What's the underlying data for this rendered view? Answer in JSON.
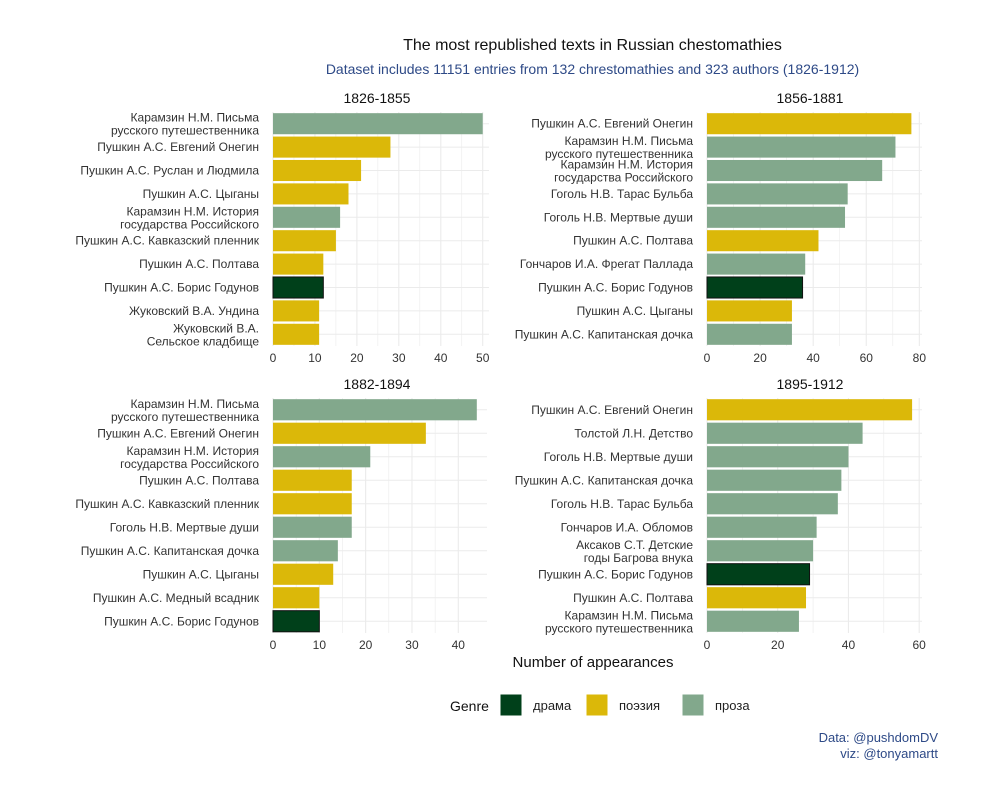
{
  "title": "The most republished texts in Russian chestomathies",
  "subtitle": "Dataset includes 11151 entries from 132 chrestomathies and 323 authors (1826-1912)",
  "caption": {
    "line1": "Data: @pushdomDV",
    "line2": "viz: @tonyamartt"
  },
  "colors": {
    "драма": "#00401A",
    "поэзия": "#DBB809",
    "проза": "#82A88C",
    "accent_text": "#2E4A87",
    "grid": "#EBEBEB"
  },
  "chart_data": {
    "type": "bar",
    "orientation": "horizontal",
    "xlabel": "Number of appearances",
    "legend": {
      "title": "Genre",
      "placement": "bottom",
      "entries": [
        "драма",
        "поэзия",
        "проза"
      ]
    },
    "grid": true,
    "panels": [
      {
        "title": "1826-1855",
        "xlim": [
          0,
          51.5
        ],
        "xticks": [
          0,
          10,
          20,
          30,
          40,
          50
        ],
        "bars": [
          {
            "label": "Карамзин Н.М. Письма русского путешественника",
            "value": 50,
            "genre": "проза"
          },
          {
            "label": "Пушкин А.С. Евгений Онегин",
            "value": 28,
            "genre": "поэзия"
          },
          {
            "label": "Пушкин А.С. Руслан и Людмила",
            "value": 21,
            "genre": "поэзия"
          },
          {
            "label": "Пушкин А.С. Цыганы",
            "value": 18,
            "genre": "поэзия"
          },
          {
            "label": "Карамзин Н.М. История государства Российского",
            "value": 16,
            "genre": "проза"
          },
          {
            "label": "Пушкин А.С. Кавказский пленник",
            "value": 15,
            "genre": "поэзия"
          },
          {
            "label": "Пушкин А.С. Полтава",
            "value": 12,
            "genre": "поэзия"
          },
          {
            "label": "Пушкин А.С. Борис Годунов",
            "value": 12,
            "genre": "драма"
          },
          {
            "label": "Жуковский В.А. Ундина",
            "value": 11,
            "genre": "поэзия"
          },
          {
            "label": "Жуковский В.А. Сельское кладбище",
            "value": 11,
            "genre": "поэзия"
          }
        ]
      },
      {
        "title": "1856-1881",
        "xlim": [
          0,
          81
        ],
        "xticks": [
          0,
          20,
          40,
          60,
          80
        ],
        "bars": [
          {
            "label": "Пушкин А.С. Евгений Онегин",
            "value": 77,
            "genre": "поэзия"
          },
          {
            "label": "Карамзин Н.М. Письма русского путешественника",
            "value": 71,
            "genre": "проза"
          },
          {
            "label": "Карамзин Н.М. История государства Российского",
            "value": 66,
            "genre": "проза"
          },
          {
            "label": "Гоголь Н.В. Тарас Бульба",
            "value": 53,
            "genre": "проза"
          },
          {
            "label": "Гоголь Н.В. Мертвые души",
            "value": 52,
            "genre": "проза"
          },
          {
            "label": "Пушкин А.С. Полтава",
            "value": 42,
            "genre": "поэзия"
          },
          {
            "label": "Гончаров И.А. Фрегат Паллада",
            "value": 37,
            "genre": "проза"
          },
          {
            "label": "Пушкин А.С. Борис Годунов",
            "value": 36,
            "genre": "драма"
          },
          {
            "label": "Пушкин А.С. Цыганы",
            "value": 32,
            "genre": "поэзия"
          },
          {
            "label": "Пушкин А.С. Капитанская дочка",
            "value": 32,
            "genre": "проза"
          }
        ]
      },
      {
        "title": "1882-1894",
        "xlim": [
          0,
          46.2
        ],
        "xticks": [
          0,
          10,
          20,
          30,
          40
        ],
        "bars": [
          {
            "label": "Карамзин Н.М. Письма русского путешественника",
            "value": 44,
            "genre": "проза"
          },
          {
            "label": "Пушкин А.С. Евгений Онегин",
            "value": 33,
            "genre": "поэзия"
          },
          {
            "label": "Карамзин Н.М. История государства Российского",
            "value": 21,
            "genre": "проза"
          },
          {
            "label": "Пушкин А.С. Полтава",
            "value": 17,
            "genre": "поэзия"
          },
          {
            "label": "Пушкин А.С. Кавказский пленник",
            "value": 17,
            "genre": "поэзия"
          },
          {
            "label": "Гоголь Н.В. Мертвые души",
            "value": 17,
            "genre": "проза"
          },
          {
            "label": "Пушкин А.С. Капитанская дочка",
            "value": 14,
            "genre": "проза"
          },
          {
            "label": "Пушкин А.С. Цыганы",
            "value": 13,
            "genre": "поэзия"
          },
          {
            "label": "Пушкин А.С. Медный всадник",
            "value": 10,
            "genre": "поэзия"
          },
          {
            "label": "Пушкин А.С. Борис Годунов",
            "value": 10,
            "genre": "драма"
          }
        ]
      },
      {
        "title": "1895-1912",
        "xlim": [
          0,
          60.8
        ],
        "xticks": [
          0,
          20,
          40,
          60
        ],
        "bars": [
          {
            "label": "Пушкин А.С. Евгений Онегин",
            "value": 58,
            "genre": "поэзия"
          },
          {
            "label": "Толстой Л.Н. Детство",
            "value": 44,
            "genre": "проза"
          },
          {
            "label": "Гоголь Н.В. Мертвые души",
            "value": 40,
            "genre": "проза"
          },
          {
            "label": "Пушкин А.С. Капитанская дочка",
            "value": 38,
            "genre": "проза"
          },
          {
            "label": "Гоголь Н.В. Тарас Бульба",
            "value": 37,
            "genre": "проза"
          },
          {
            "label": "Гончаров И.А. Обломов",
            "value": 31,
            "genre": "проза"
          },
          {
            "label": "Аксаков С.Т. Детские годы Багрова внука",
            "value": 30,
            "genre": "проза"
          },
          {
            "label": "Пушкин А.С. Борис Годунов",
            "value": 29,
            "genre": "драма"
          },
          {
            "label": "Пушкин А.С. Полтава",
            "value": 28,
            "genre": "поэзия"
          },
          {
            "label": "Карамзин Н.М. Письма русского путешественника",
            "value": 26,
            "genre": "проза"
          }
        ]
      }
    ]
  }
}
